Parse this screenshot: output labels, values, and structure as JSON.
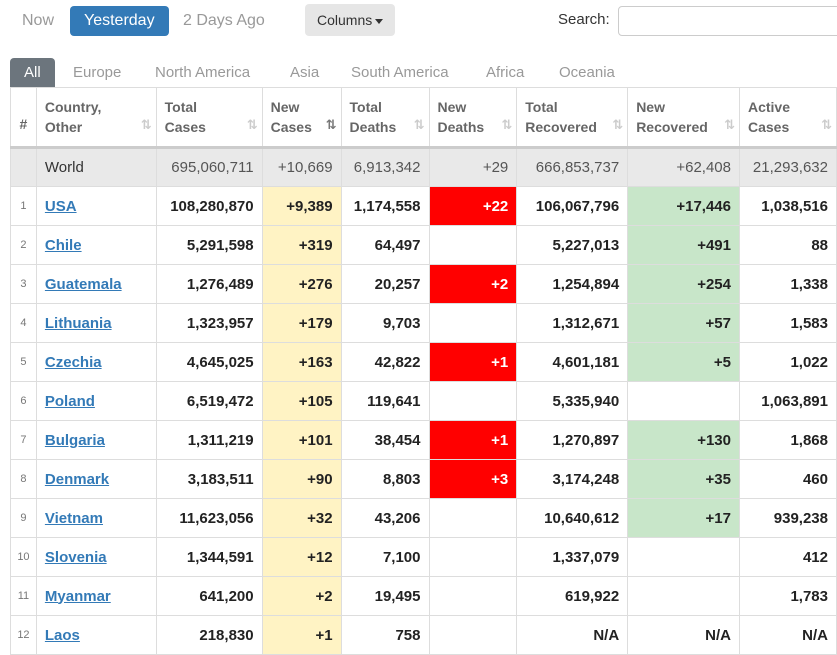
{
  "time_tabs": [
    "Now",
    "Yesterday",
    "2 Days Ago"
  ],
  "active_time_tab": "Yesterday",
  "columns_button": "Columns",
  "search": {
    "label": "Search:",
    "value": ""
  },
  "region_tabs": [
    "All",
    "Europe",
    "North America",
    "Asia",
    "South America",
    "Africa",
    "Oceania"
  ],
  "active_region_tab": "All",
  "headers": {
    "rank": "#",
    "country": [
      "Country,",
      "Other"
    ],
    "total_cases": [
      "Total",
      "Cases"
    ],
    "new_cases": [
      "New",
      "Cases"
    ],
    "total_deaths": [
      "Total",
      "Deaths"
    ],
    "new_deaths": [
      "New",
      "Deaths"
    ],
    "total_recovered": [
      "Total",
      "Recovered"
    ],
    "new_recovered": [
      "New",
      "Recovered"
    ],
    "active_cases": [
      "Active",
      "Cases"
    ]
  },
  "world": {
    "country": "World",
    "total_cases": "695,060,711",
    "new_cases": "+10,669",
    "total_deaths": "6,913,342",
    "new_deaths": "+29",
    "total_recovered": "666,853,737",
    "new_recovered": "+62,408",
    "active_cases": "21,293,632"
  },
  "rows": [
    {
      "rank": "1",
      "country": "USA",
      "total_cases": "108,280,870",
      "new_cases": "+9,389",
      "total_deaths": "1,174,558",
      "new_deaths": "+22",
      "total_recovered": "106,067,796",
      "new_recovered": "+17,446",
      "active_cases": "1,038,516"
    },
    {
      "rank": "2",
      "country": "Chile",
      "total_cases": "5,291,598",
      "new_cases": "+319",
      "total_deaths": "64,497",
      "new_deaths": "",
      "total_recovered": "5,227,013",
      "new_recovered": "+491",
      "active_cases": "88"
    },
    {
      "rank": "3",
      "country": "Guatemala",
      "total_cases": "1,276,489",
      "new_cases": "+276",
      "total_deaths": "20,257",
      "new_deaths": "+2",
      "total_recovered": "1,254,894",
      "new_recovered": "+254",
      "active_cases": "1,338"
    },
    {
      "rank": "4",
      "country": "Lithuania",
      "total_cases": "1,323,957",
      "new_cases": "+179",
      "total_deaths": "9,703",
      "new_deaths": "",
      "total_recovered": "1,312,671",
      "new_recovered": "+57",
      "active_cases": "1,583"
    },
    {
      "rank": "5",
      "country": "Czechia",
      "total_cases": "4,645,025",
      "new_cases": "+163",
      "total_deaths": "42,822",
      "new_deaths": "+1",
      "total_recovered": "4,601,181",
      "new_recovered": "+5",
      "active_cases": "1,022"
    },
    {
      "rank": "6",
      "country": "Poland",
      "total_cases": "6,519,472",
      "new_cases": "+105",
      "total_deaths": "119,641",
      "new_deaths": "",
      "total_recovered": "5,335,940",
      "new_recovered": "",
      "active_cases": "1,063,891"
    },
    {
      "rank": "7",
      "country": "Bulgaria",
      "total_cases": "1,311,219",
      "new_cases": "+101",
      "total_deaths": "38,454",
      "new_deaths": "+1",
      "total_recovered": "1,270,897",
      "new_recovered": "+130",
      "active_cases": "1,868"
    },
    {
      "rank": "8",
      "country": "Denmark",
      "total_cases": "3,183,511",
      "new_cases": "+90",
      "total_deaths": "8,803",
      "new_deaths": "+3",
      "total_recovered": "3,174,248",
      "new_recovered": "+35",
      "active_cases": "460"
    },
    {
      "rank": "9",
      "country": "Vietnam",
      "total_cases": "11,623,056",
      "new_cases": "+32",
      "total_deaths": "43,206",
      "new_deaths": "",
      "total_recovered": "10,640,612",
      "new_recovered": "+17",
      "active_cases": "939,238"
    },
    {
      "rank": "10",
      "country": "Slovenia",
      "total_cases": "1,344,591",
      "new_cases": "+12",
      "total_deaths": "7,100",
      "new_deaths": "",
      "total_recovered": "1,337,079",
      "new_recovered": "",
      "active_cases": "412"
    },
    {
      "rank": "11",
      "country": "Myanmar",
      "total_cases": "641,200",
      "new_cases": "+2",
      "total_deaths": "19,495",
      "new_deaths": "",
      "total_recovered": "619,922",
      "new_recovered": "",
      "active_cases": "1,783"
    },
    {
      "rank": "12",
      "country": "Laos",
      "total_cases": "218,830",
      "new_cases": "+1",
      "total_deaths": "758",
      "new_deaths": "",
      "total_recovered": "N/A",
      "new_recovered": "N/A",
      "active_cases": "N/A"
    }
  ],
  "colors": {
    "primary": "#337ab7",
    "region_active": "#6c757d",
    "new_cases_bg": "#fff3c4",
    "new_deaths_bg": "#ff0000",
    "new_recovered_bg": "#c8e6c9",
    "world_row_bg": "#e9e9e9"
  }
}
